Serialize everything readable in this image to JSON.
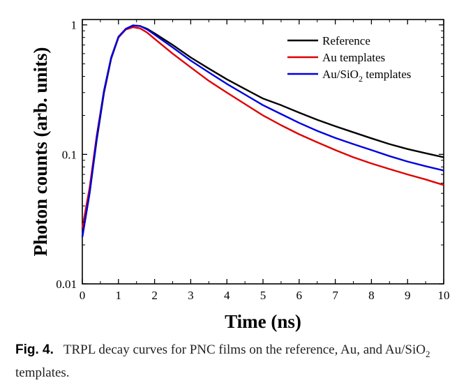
{
  "chart_data": {
    "type": "line",
    "title": "",
    "xlabel": "Time (ns)",
    "ylabel": "Photon counts (arb. units)",
    "xlim": [
      0,
      10
    ],
    "ylim": [
      0.01,
      1.1
    ],
    "yscale": "log",
    "grid": false,
    "legend_position": "top-right",
    "x_ticks": [
      0,
      1,
      2,
      3,
      4,
      5,
      6,
      7,
      8,
      9,
      10
    ],
    "x_tick_labels": [
      "0",
      "1",
      "2",
      "3",
      "4",
      "5",
      "6",
      "7",
      "8",
      "9",
      "10"
    ],
    "y_ticks": [
      0.01,
      0.1,
      1
    ],
    "y_tick_labels": [
      "0.01",
      "0.1",
      "1"
    ],
    "series": [
      {
        "name": "Reference",
        "color": "#000000",
        "x": [
          0,
          0.2,
          0.4,
          0.6,
          0.8,
          1.0,
          1.2,
          1.4,
          1.6,
          1.8,
          2.0,
          2.5,
          3.0,
          3.5,
          4.0,
          4.5,
          5.0,
          5.5,
          6.0,
          6.5,
          7.0,
          7.5,
          8.0,
          8.5,
          9.0,
          9.5,
          10.0
        ],
        "y": [
          0.023,
          0.05,
          0.13,
          0.3,
          0.55,
          0.8,
          0.93,
          0.99,
          0.98,
          0.93,
          0.86,
          0.7,
          0.56,
          0.46,
          0.38,
          0.32,
          0.27,
          0.24,
          0.21,
          0.185,
          0.165,
          0.148,
          0.133,
          0.12,
          0.11,
          0.102,
          0.095
        ]
      },
      {
        "name": "Au templates",
        "color": "#e00000",
        "x": [
          0,
          0.2,
          0.4,
          0.6,
          0.8,
          1.0,
          1.2,
          1.4,
          1.6,
          1.8,
          2.0,
          2.5,
          3.0,
          3.5,
          4.0,
          4.5,
          5.0,
          5.5,
          6.0,
          6.5,
          7.0,
          7.5,
          8.0,
          8.5,
          9.0,
          9.5,
          10.0
        ],
        "y": [
          0.027,
          0.055,
          0.14,
          0.31,
          0.56,
          0.8,
          0.92,
          0.96,
          0.94,
          0.87,
          0.78,
          0.6,
          0.47,
          0.37,
          0.3,
          0.245,
          0.2,
          0.168,
          0.143,
          0.124,
          0.108,
          0.095,
          0.085,
          0.077,
          0.07,
          0.064,
          0.058
        ]
      },
      {
        "name": "Au/SiO",
        "name_sub": "2",
        "name_rest": " templates",
        "color": "#0000e0",
        "x": [
          0,
          0.2,
          0.4,
          0.6,
          0.8,
          1.0,
          1.2,
          1.4,
          1.6,
          1.8,
          2.0,
          2.5,
          3.0,
          3.5,
          4.0,
          4.5,
          5.0,
          5.5,
          6.0,
          6.5,
          7.0,
          7.5,
          8.0,
          8.5,
          9.0,
          9.5,
          10.0
        ],
        "y": [
          0.023,
          0.05,
          0.135,
          0.31,
          0.56,
          0.81,
          0.93,
          0.99,
          0.98,
          0.92,
          0.84,
          0.67,
          0.53,
          0.43,
          0.35,
          0.29,
          0.24,
          0.205,
          0.175,
          0.152,
          0.134,
          0.12,
          0.108,
          0.097,
          0.088,
          0.081,
          0.075
        ]
      }
    ]
  },
  "caption": {
    "label": "Fig. 4.",
    "text_before": "TRPL decay curves for PNC films on the reference, Au, and Au/SiO",
    "sub": "2",
    "text_after": " templates."
  }
}
